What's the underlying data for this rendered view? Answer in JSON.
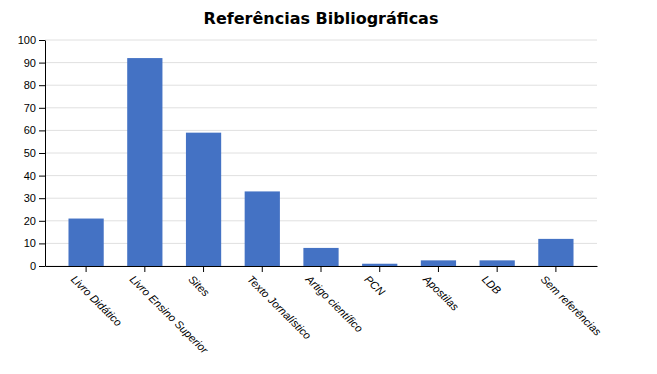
{
  "chart_data": {
    "type": "bar",
    "title": "Referências Bibliográficas",
    "categories": [
      "Livro Didático",
      "Livro Ensino Superior",
      "Sites",
      "Texto Jornalístico",
      "Artigo científico",
      "PCN",
      "Apostilas",
      "LDB",
      "Sem referências"
    ],
    "values": [
      21,
      92,
      59,
      33,
      8,
      1,
      2.5,
      2.5,
      12
    ],
    "color": "#4472C4",
    "ylim": [
      0,
      100
    ],
    "yticks": [
      0,
      10,
      20,
      30,
      40,
      50,
      60,
      70,
      80,
      90,
      100
    ],
    "grid": true
  }
}
